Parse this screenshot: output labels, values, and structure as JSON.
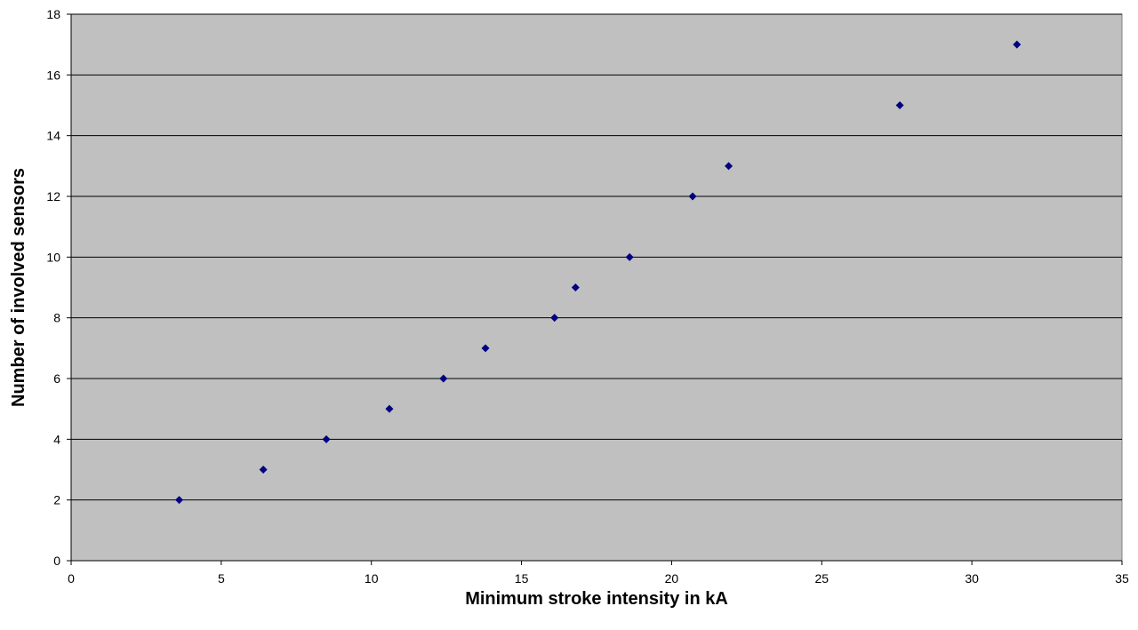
{
  "chart_data": {
    "type": "scatter",
    "title": "",
    "xlabel": "Minimum stroke intensity in kA",
    "ylabel": "Number of involved sensors",
    "xlim": [
      0,
      35
    ],
    "ylim": [
      0,
      18
    ],
    "x_ticks": [
      "0",
      "5",
      "10",
      "15",
      "20",
      "25",
      "30",
      "35"
    ],
    "y_ticks": [
      "0",
      "2",
      "4",
      "6",
      "8",
      "10",
      "12",
      "14",
      "16",
      "18"
    ],
    "grid": "horizontal",
    "legend": "none",
    "marker": "diamond",
    "colors": {
      "plot_area": "#c0c0c0",
      "marker": "#000080",
      "gridline": "#000000"
    },
    "series": [
      {
        "points": [
          {
            "x": 3.6,
            "y": 2
          },
          {
            "x": 6.4,
            "y": 3
          },
          {
            "x": 8.5,
            "y": 4
          },
          {
            "x": 10.6,
            "y": 5
          },
          {
            "x": 12.4,
            "y": 6
          },
          {
            "x": 13.8,
            "y": 7
          },
          {
            "x": 16.1,
            "y": 8
          },
          {
            "x": 16.8,
            "y": 9
          },
          {
            "x": 18.6,
            "y": 10
          },
          {
            "x": 20.7,
            "y": 12
          },
          {
            "x": 21.9,
            "y": 13
          },
          {
            "x": 27.6,
            "y": 15
          },
          {
            "x": 31.5,
            "y": 17
          }
        ]
      }
    ]
  }
}
